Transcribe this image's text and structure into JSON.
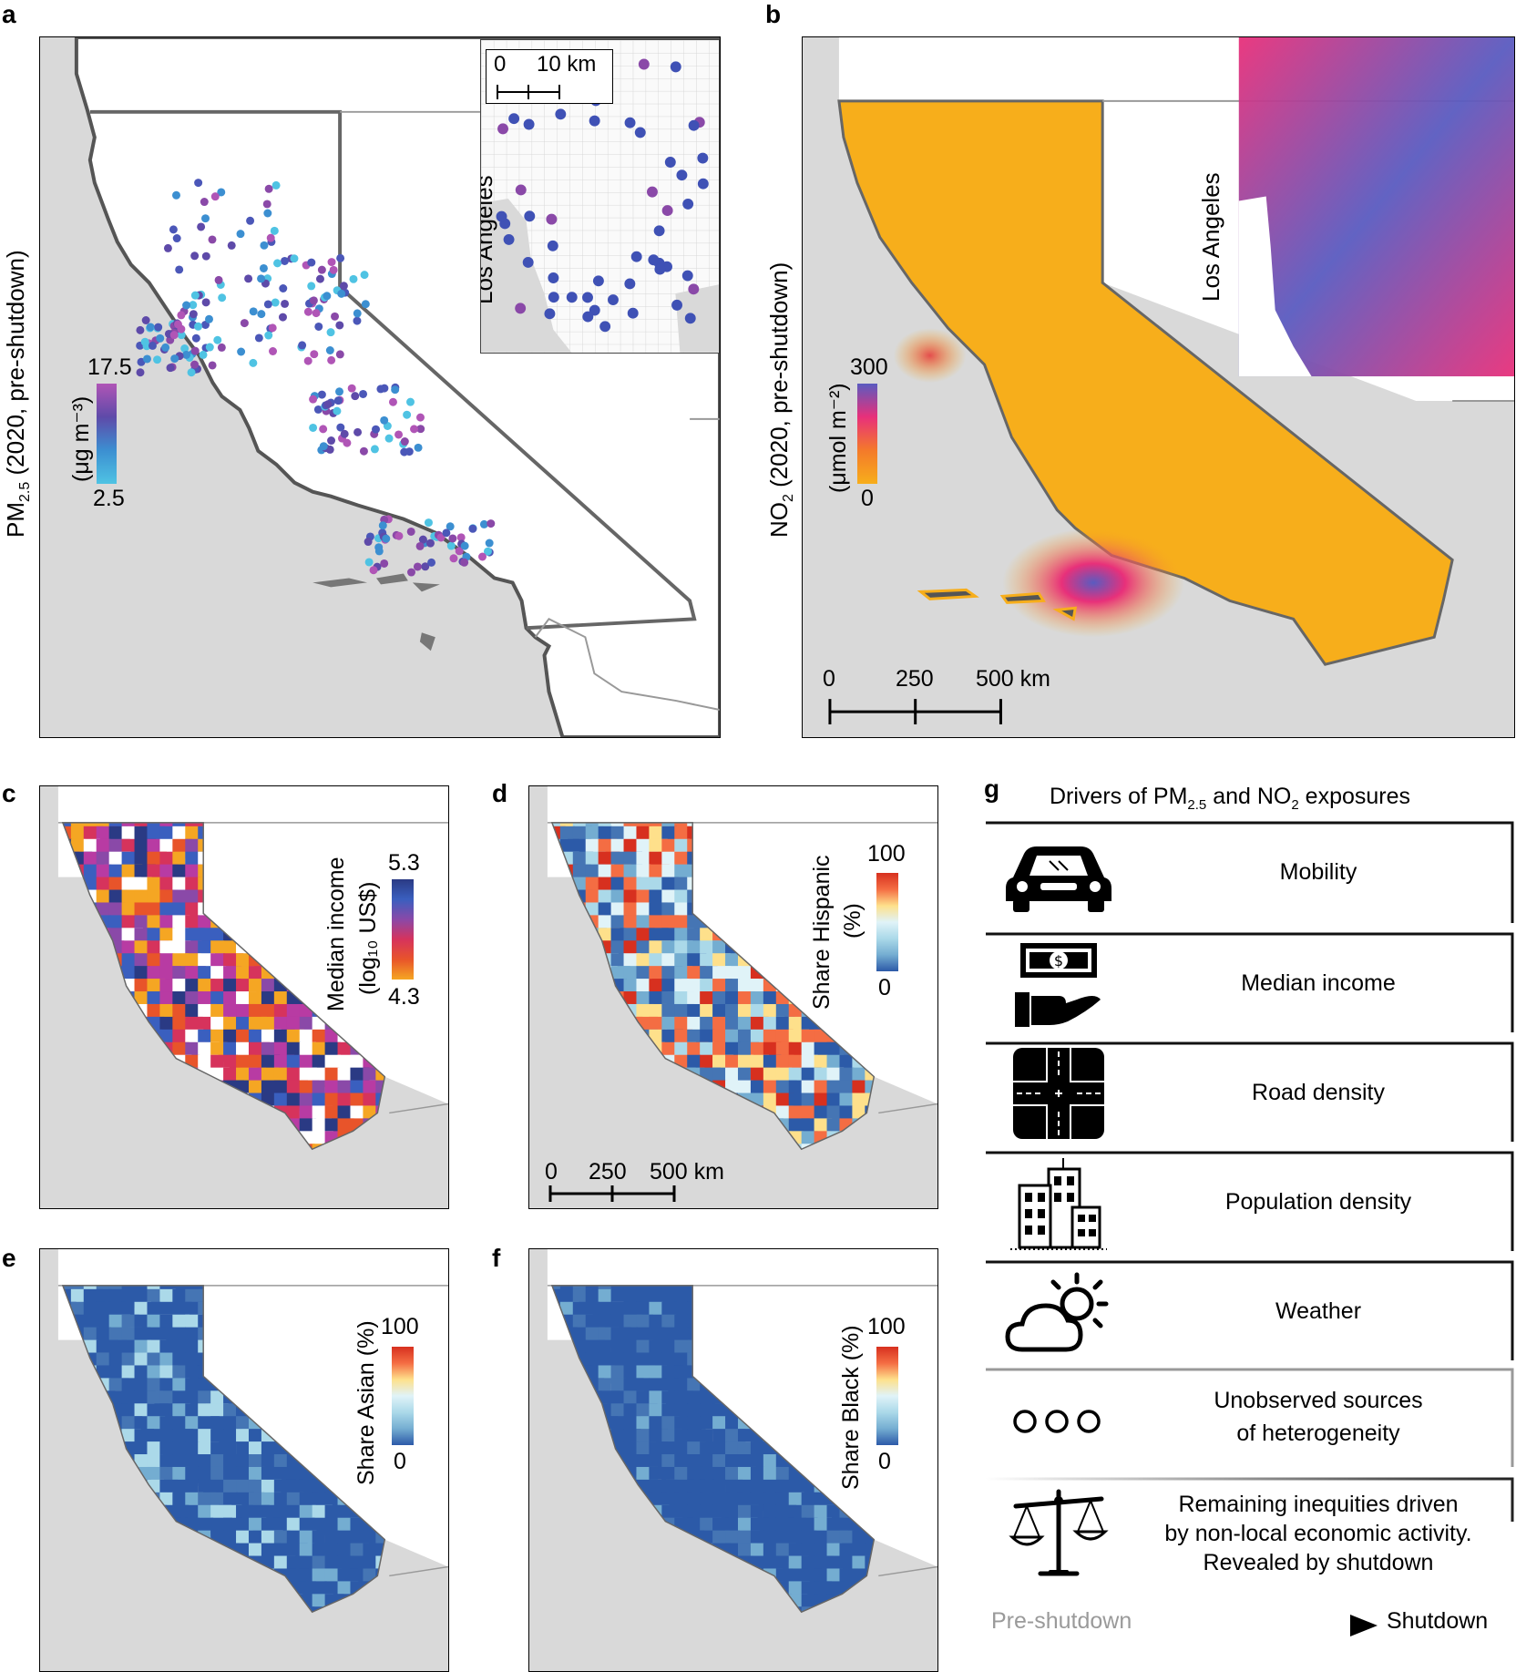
{
  "panels": {
    "a": {
      "letter": "a",
      "ylabel_main": "PM",
      "ylabel_sub": "2.5",
      "ylabel_rest": " (2020, pre-shutdown)",
      "legend_max": "17.5",
      "legend_min": "2.5",
      "legend_unit": "(μg m⁻³)",
      "inset_label": "Los Angeles",
      "inset_scale_zero": "0",
      "inset_scale_label": "10 km",
      "colors": [
        "#4fc3e3",
        "#3c8fd1",
        "#4b57b8",
        "#5e4aa9",
        "#8a49a8",
        "#b055b6"
      ]
    },
    "b": {
      "letter": "b",
      "ylabel_main": "NO",
      "ylabel_sub": "2",
      "ylabel_rest": " (2020, pre-shutdown)",
      "legend_max": "300",
      "legend_min": "0",
      "legend_unit": "(μmol m⁻²)",
      "inset_label": "Los Angeles",
      "scale_ticks": [
        "0",
        "250",
        "500 km"
      ],
      "colors": [
        "#f7ae1b",
        "#f47a2a",
        "#e8307a",
        "#5a5bc0"
      ]
    },
    "c": {
      "letter": "c",
      "legend_title": "Median income",
      "legend_unit": "(log₁₀ US$)",
      "legend_max": "5.3",
      "legend_min": "4.3"
    },
    "d": {
      "letter": "d",
      "legend_title": "Share Hispanic",
      "legend_unit": "(%)",
      "legend_max": "100",
      "legend_min": "0",
      "scale_ticks": [
        "0",
        "250",
        "500 km"
      ]
    },
    "e": {
      "letter": "e",
      "legend_title": "Share Asian (%)",
      "legend_max": "100",
      "legend_min": "0"
    },
    "f": {
      "letter": "f",
      "legend_title": "Share Black (%)",
      "legend_max": "100",
      "legend_min": "0"
    },
    "g": {
      "letter": "g",
      "title_pre": "Drivers of PM",
      "title_sub1": "2.5",
      "title_mid": " and NO",
      "title_sub2": "2",
      "title_post": " exposures",
      "drivers": [
        {
          "label": "Mobility",
          "icon": "car-icon"
        },
        {
          "label": "Median income",
          "icon": "money-hand-icon"
        },
        {
          "label": "Road density",
          "icon": "road-intersection-icon"
        },
        {
          "label": "Population density",
          "icon": "buildings-icon"
        },
        {
          "label": "Weather",
          "icon": "cloud-sun-icon"
        },
        {
          "label_line1": "Unobserved sources",
          "label_line2": "of heterogeneity",
          "icon": "three-circles-icon"
        },
        {
          "label_line1": "Remaining inequities driven",
          "label_line2": "by non-local economic activity.",
          "label_line3": "Revealed by shutdown",
          "icon": "scales-icon"
        }
      ],
      "arrow_start": "Pre-shutdown",
      "arrow_end": "Shutdown"
    }
  }
}
